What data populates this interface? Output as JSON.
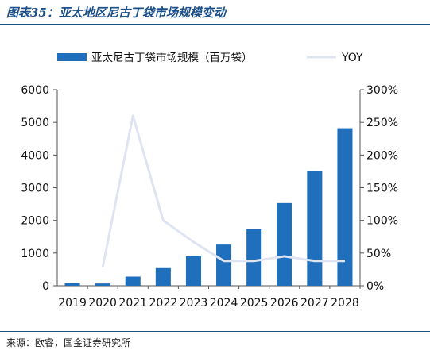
{
  "header": {
    "title": "图表35：亚太地区尼古丁袋市场规模变动"
  },
  "footer": {
    "source": "来源：欧睿，国金证券研究所"
  },
  "chart_data": {
    "type": "bar",
    "categories": [
      "2019",
      "2020",
      "2021",
      "2022",
      "2023",
      "2024",
      "2025",
      "2026",
      "2027",
      "2028"
    ],
    "series": [
      {
        "name": "亚太尼古丁袋市场规模（百万袋）",
        "type": "bar",
        "axis": "left",
        "color": "#1f6fbd",
        "values": [
          80,
          70,
          280,
          540,
          900,
          1260,
          1730,
          2530,
          3500,
          4820
        ]
      },
      {
        "name": "YOY",
        "type": "line",
        "axis": "right",
        "color": "#dfe4f3",
        "values": [
          null,
          0.28,
          2.6,
          1.0,
          0.67,
          0.38,
          0.38,
          0.45,
          0.38,
          0.38
        ]
      }
    ],
    "y_left": {
      "ylim": [
        0,
        6000
      ],
      "ticks": [
        "0",
        "1000",
        "2000",
        "3000",
        "4000",
        "5000",
        "6000"
      ]
    },
    "y_right": {
      "ylim": [
        0,
        3
      ],
      "ticks": [
        "0%",
        "50%",
        "100%",
        "150%",
        "200%",
        "250%",
        "300%"
      ]
    },
    "legend_position": "top",
    "grid": false
  }
}
